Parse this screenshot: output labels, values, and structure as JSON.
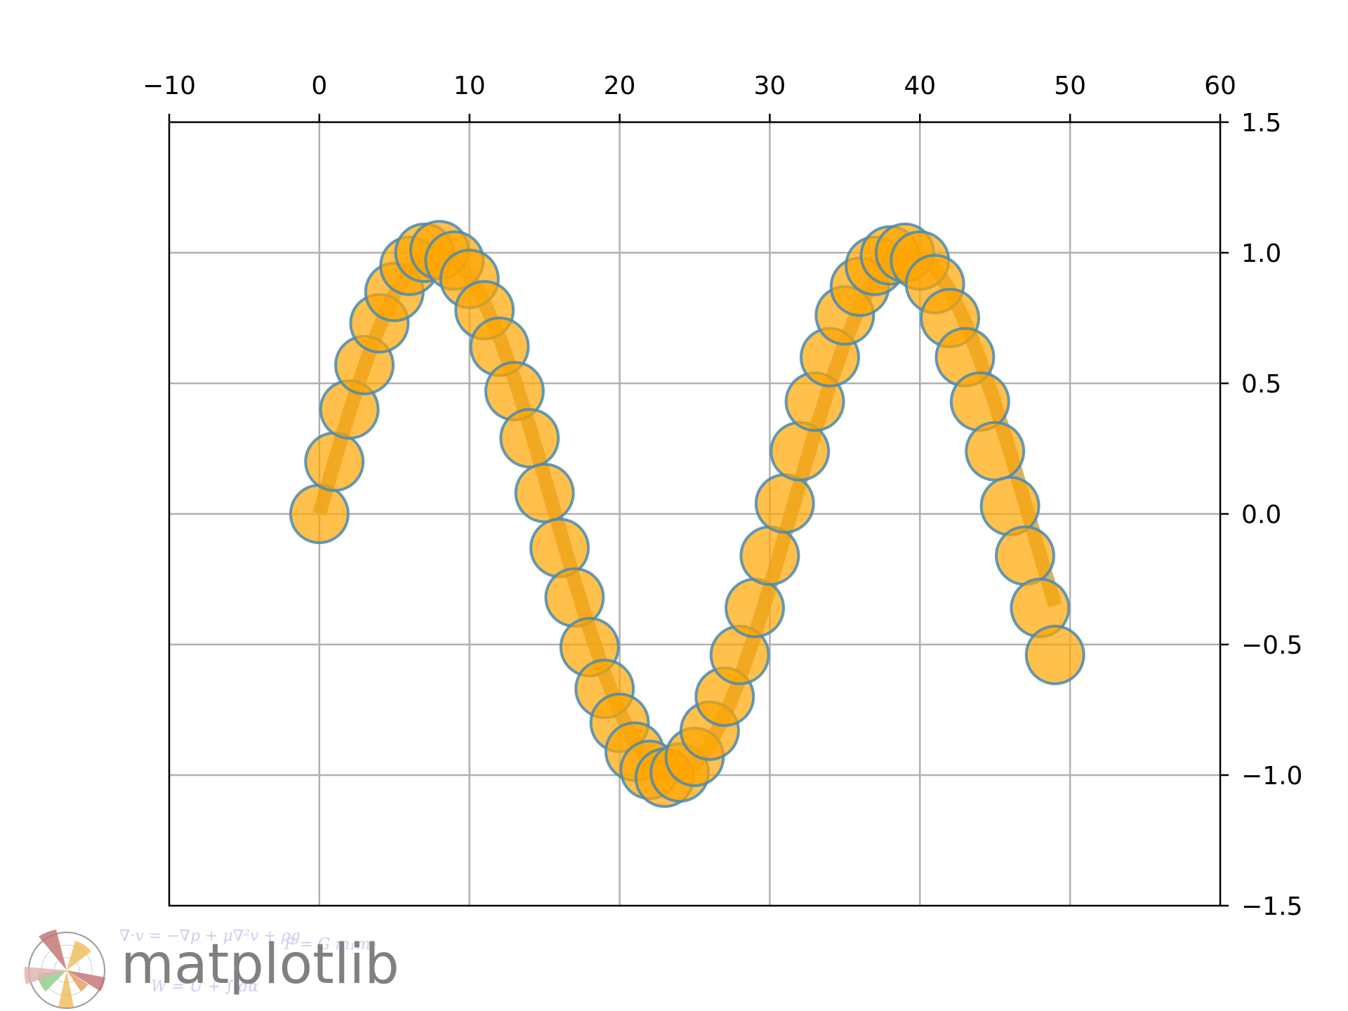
{
  "chart_data": {
    "type": "scatter",
    "title": "",
    "xlabel": "",
    "ylabel": "",
    "xlim": [
      -10,
      60
    ],
    "ylim": [
      -1.5,
      1.5
    ],
    "x_ticks": [
      -10,
      0,
      10,
      20,
      30,
      40,
      50,
      60
    ],
    "x_tick_labels": [
      "−10",
      "0",
      "10",
      "20",
      "30",
      "40",
      "50",
      "60"
    ],
    "y_ticks": [
      -1.5,
      -1.0,
      -0.5,
      0.0,
      0.5,
      1.0,
      1.5
    ],
    "y_tick_labels": [
      "−1.5",
      "−1.0",
      "−0.5",
      "0.0",
      "0.5",
      "1.0",
      "1.5"
    ],
    "x_axis_position": "top",
    "y_axis_position": "right",
    "grid": true,
    "series": [
      {
        "kind": "line",
        "x": [
          0,
          1,
          2,
          3,
          4,
          5,
          6,
          7,
          8,
          9,
          10,
          11,
          12,
          13,
          14,
          15,
          16,
          17,
          18,
          19,
          20,
          21,
          22,
          23,
          24,
          25,
          26,
          27,
          28,
          29,
          30,
          31,
          32,
          33,
          34,
          35,
          36,
          37,
          38,
          39,
          40,
          41,
          42,
          43,
          44,
          45,
          46,
          47,
          48,
          49
        ],
        "y": [
          0.0,
          0.198,
          0.389,
          0.565,
          0.717,
          0.841,
          0.932,
          0.985,
          1.0,
          0.974,
          0.909,
          0.808,
          0.675,
          0.516,
          0.335,
          0.141,
          -0.058,
          -0.256,
          -0.443,
          -0.612,
          -0.757,
          -0.872,
          -0.952,
          -0.994,
          -0.996,
          -0.959,
          -0.883,
          -0.773,
          -0.631,
          -0.465,
          -0.279,
          -0.083,
          0.116,
          0.312,
          0.494,
          0.657,
          0.794,
          0.899,
          0.968,
          0.999,
          0.989,
          0.941,
          0.856,
          0.737,
          0.591,
          0.422,
          0.237,
          0.042,
          -0.157,
          -0.351
        ],
        "color": "#c8a04a"
      },
      {
        "kind": "scatter",
        "x": [
          0,
          1,
          2,
          3,
          4,
          5,
          6,
          7,
          8,
          9,
          10,
          11,
          12,
          13,
          14,
          15,
          16,
          17,
          18,
          19,
          20,
          21,
          22,
          23,
          24,
          25,
          26,
          27,
          28,
          29,
          30,
          31,
          32,
          33,
          34,
          35,
          36,
          37,
          38,
          39,
          40,
          41,
          42,
          43,
          44,
          45,
          46,
          47,
          48,
          49
        ],
        "y": [
          0.0,
          0.2,
          0.4,
          0.57,
          0.73,
          0.85,
          0.95,
          1.0,
          1.01,
          0.97,
          0.9,
          0.78,
          0.64,
          0.47,
          0.29,
          0.08,
          -0.13,
          -0.32,
          -0.51,
          -0.67,
          -0.8,
          -0.91,
          -0.98,
          -1.01,
          -0.99,
          -0.93,
          -0.83,
          -0.7,
          -0.54,
          -0.36,
          -0.16,
          0.04,
          0.24,
          0.43,
          0.6,
          0.76,
          0.87,
          0.95,
          0.99,
          1.0,
          0.97,
          0.88,
          0.75,
          0.6,
          0.43,
          0.24,
          0.03,
          -0.16,
          -0.36,
          -0.54
        ],
        "fill": "#ffa500",
        "edge": "#4a8ab0"
      }
    ],
    "watermark": "matplotlib"
  }
}
